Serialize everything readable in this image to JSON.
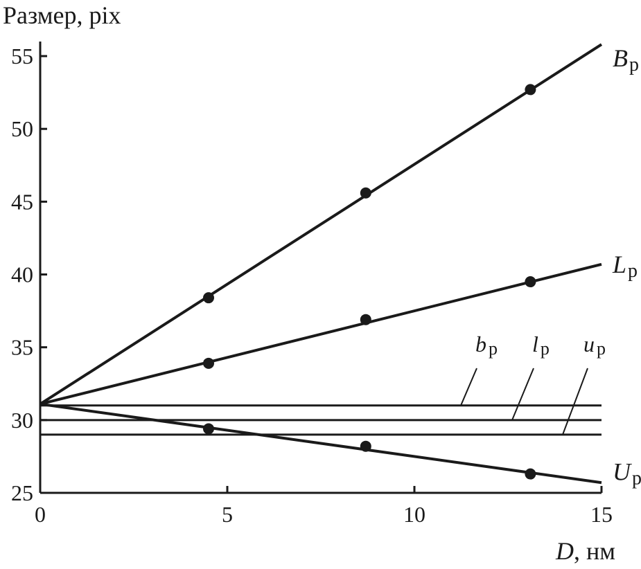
{
  "chart_data": {
    "type": "line",
    "xlabel_var": "D",
    "xlabel_unit": ", нм",
    "ylabel": "Размер, pix",
    "xlim": [
      0,
      15
    ],
    "ylim": [
      25,
      56
    ],
    "x_ticks": [
      0,
      5,
      10,
      15
    ],
    "y_ticks": [
      25,
      30,
      35,
      40,
      45,
      50,
      55
    ],
    "grid": false,
    "series": [
      {
        "name": "B",
        "sub": "p",
        "line": [
          [
            0,
            31.1
          ],
          [
            15,
            55.8
          ]
        ],
        "points": [
          [
            4.5,
            38.4
          ],
          [
            8.7,
            45.6
          ],
          [
            13.1,
            52.7
          ]
        ]
      },
      {
        "name": "L",
        "sub": "p",
        "line": [
          [
            0,
            31.1
          ],
          [
            15,
            40.7
          ]
        ],
        "points": [
          [
            4.5,
            33.9
          ],
          [
            8.7,
            36.9
          ],
          [
            13.1,
            39.5
          ]
        ]
      },
      {
        "name": "U",
        "sub": "p",
        "line": [
          [
            0,
            31.1
          ],
          [
            15,
            25.7
          ]
        ],
        "points": [
          [
            4.5,
            29.4
          ],
          [
            8.7,
            28.2
          ],
          [
            13.1,
            26.3
          ]
        ]
      }
    ],
    "reference_lines": [
      {
        "name": "b",
        "sub": "p",
        "y": 31.0
      },
      {
        "name": "l",
        "sub": "p",
        "y": 30.0
      },
      {
        "name": "u",
        "sub": "p",
        "y": 29.0
      }
    ]
  }
}
